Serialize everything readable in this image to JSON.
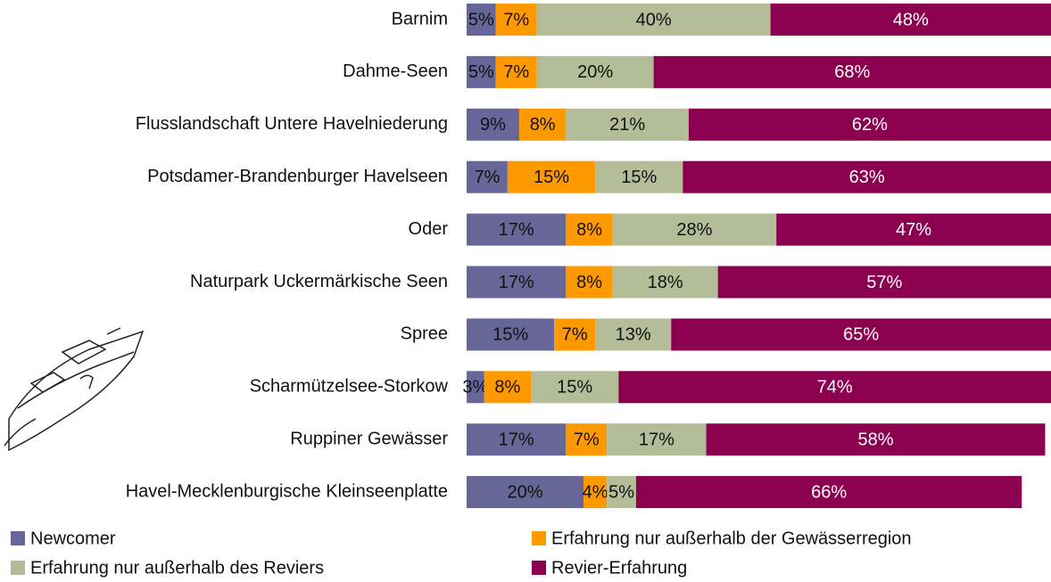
{
  "chart_data": {
    "type": "stacked-bar-horizontal",
    "categories": [
      "Barnim",
      "Dahme-Seen",
      "Flusslandschaft Untere Havelniederung",
      "Potsdamer-Brandenburger Havelseen",
      "Oder",
      "Naturpark Uckermärkische Seen",
      "Spree",
      "Scharmützelsee-Storkow",
      "Ruppiner Gewässer",
      "Havel-Mecklenburgische Kleinseenplatte"
    ],
    "xlim": [
      0,
      100
    ],
    "series": [
      {
        "name": "Newcomer",
        "color": "#666699",
        "values": [
          5,
          5,
          9,
          7,
          17,
          17,
          15,
          3,
          17,
          20
        ],
        "value_labels": [
          "5%",
          "5%",
          "9%",
          "7%",
          "17%",
          "17%",
          "15%",
          "3%",
          "17%",
          "20%"
        ]
      },
      {
        "name": "Erfahrung nur außerhalb der Gewässerregion",
        "color": "#ff9900",
        "values": [
          7,
          7,
          8,
          15,
          8,
          8,
          7,
          8,
          7,
          4
        ],
        "value_labels": [
          "7%",
          "7%",
          "8%",
          "15%",
          "8%",
          "8%",
          "7%",
          "8%",
          "7%",
          "4%"
        ]
      },
      {
        "name": "Erfahrung nur außerhalb des Reviers",
        "color": "#b4bc98",
        "values": [
          40,
          20,
          21,
          15,
          28,
          18,
          13,
          15,
          17,
          5
        ],
        "value_labels": [
          "40%",
          "20%",
          "21%",
          "15%",
          "28%",
          "18%",
          "13%",
          "15%",
          "17%",
          "5%"
        ]
      },
      {
        "name": "Revier-Erfahrung",
        "color": "#8c0050",
        "values": [
          48,
          68,
          62,
          63,
          47,
          57,
          65,
          74,
          58,
          66
        ],
        "value_labels": [
          "48%",
          "68%",
          "62%",
          "63%",
          "47%",
          "57%",
          "65%",
          "74%",
          "58%",
          "66%"
        ]
      }
    ]
  }
}
